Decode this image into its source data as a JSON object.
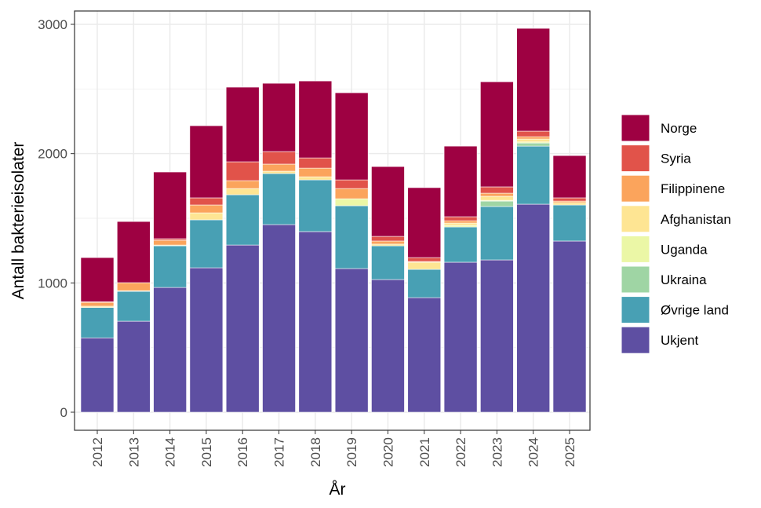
{
  "chart_data": {
    "type": "bar",
    "stacked": true,
    "xlabel": "År",
    "ylabel": "Antall bakterieisolater",
    "ylim": [
      0,
      3000
    ],
    "yticks": [
      0,
      1000,
      2000,
      3000
    ],
    "grid": true,
    "legend_position": "right",
    "categories": [
      "2012",
      "2013",
      "2014",
      "2015",
      "2016",
      "2017",
      "2018",
      "2019",
      "2020",
      "2021",
      "2022",
      "2023",
      "2024",
      "2025"
    ],
    "series": [
      {
        "name": "Ukjent",
        "color": "#5E4FA2",
        "values": [
          575,
          704,
          965,
          1117,
          1293,
          1451,
          1397,
          1111,
          1026,
          886,
          1160,
          1178,
          1609,
          1324
        ]
      },
      {
        "name": "Øvrige land",
        "color": "#48A0B4",
        "values": [
          235,
          231,
          322,
          371,
          389,
          395,
          400,
          486,
          261,
          219,
          273,
          413,
          449,
          279
        ]
      },
      {
        "name": "Ukraina",
        "color": "#9FD5A4",
        "values": [
          0,
          0,
          0,
          0,
          0,
          0,
          0,
          0,
          0,
          0,
          0,
          42,
          24,
          0
        ]
      },
      {
        "name": "Uganda",
        "color": "#EBF7A6",
        "values": [
          0,
          0,
          0,
          0,
          0,
          0,
          0,
          54,
          0,
          0,
          12,
          6,
          8,
          0
        ]
      },
      {
        "name": "Afghanistan",
        "color": "#FEE593",
        "values": [
          10,
          5,
          6,
          54,
          48,
          18,
          24,
          0,
          13,
          55,
          18,
          31,
          23,
          18
        ]
      },
      {
        "name": "Filippinene",
        "color": "#FBA45C",
        "values": [
          30,
          62,
          37,
          61,
          61,
          55,
          67,
          79,
          24,
          6,
          18,
          24,
          18,
          12
        ]
      },
      {
        "name": "Syria",
        "color": "#E1534A",
        "values": [
          5,
          0,
          12,
          55,
          146,
          97,
          79,
          67,
          36,
          30,
          31,
          49,
          43,
          25
        ]
      },
      {
        "name": "Norge",
        "color": "#9E0142",
        "values": [
          341,
          473,
          516,
          558,
          577,
          528,
          595,
          674,
          540,
          541,
          546,
          813,
          795,
          327
        ]
      }
    ],
    "legend_order": [
      "Norge",
      "Syria",
      "Filippinene",
      "Afghanistan",
      "Uganda",
      "Ukraina",
      "Øvrige land",
      "Ukjent"
    ]
  }
}
